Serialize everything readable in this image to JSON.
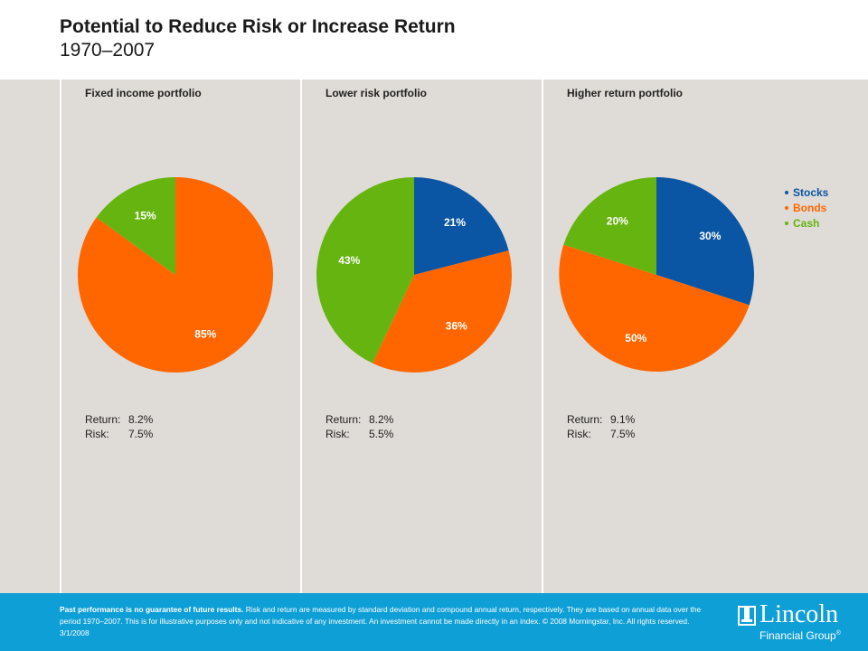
{
  "header": {
    "title": "Potential to Reduce Risk or Increase Return",
    "subtitle": "1970–2007"
  },
  "colors": {
    "stocks": "#0b56a4",
    "bonds": "#ff6600",
    "cash": "#66b410"
  },
  "legend": [
    {
      "label": "Stocks",
      "color": "#0b56a4"
    },
    {
      "label": "Bonds",
      "color": "#ff6600"
    },
    {
      "label": "Cash",
      "color": "#66b410"
    }
  ],
  "chart_data": [
    {
      "type": "pie",
      "title": "Fixed income portfolio",
      "slices": [
        {
          "name": "Stocks",
          "value": 0,
          "label": ""
        },
        {
          "name": "Bonds",
          "value": 85,
          "label": "85%"
        },
        {
          "name": "Cash",
          "value": 15,
          "label": "15%"
        }
      ],
      "return_label": "Return:",
      "return_value": "8.2%",
      "risk_label": "Risk:",
      "risk_value": "7.5%"
    },
    {
      "type": "pie",
      "title": "Lower risk portfolio",
      "slices": [
        {
          "name": "Stocks",
          "value": 21,
          "label": "21%"
        },
        {
          "name": "Bonds",
          "value": 36,
          "label": "36%"
        },
        {
          "name": "Cash",
          "value": 43,
          "label": "43%"
        }
      ],
      "return_label": "Return:",
      "return_value": "8.2%",
      "risk_label": "Risk:",
      "risk_value": "5.5%"
    },
    {
      "type": "pie",
      "title": "Higher return portfolio",
      "slices": [
        {
          "name": "Stocks",
          "value": 30,
          "label": "30%"
        },
        {
          "name": "Bonds",
          "value": 50,
          "label": "50%"
        },
        {
          "name": "Cash",
          "value": 20,
          "label": "20%"
        }
      ],
      "return_label": "Return:",
      "return_value": "9.1%",
      "risk_label": "Risk:",
      "risk_value": "7.5%"
    }
  ],
  "footer": {
    "disclaimer_bold": "Past performance is no guarantee of future results.",
    "disclaimer_text": " Risk and return are measured by standard deviation and compound annual return, respectively. They are based on annual data over the period 1970–2007. This is for illustrative purposes only and not indicative of any investment. An investment cannot be made directly in an index. © 2008 Morningstar, Inc. All rights reserved. 3/1/2008",
    "logo_name": "Lincoln",
    "logo_sub": "Financial Group",
    "logo_mark": "®"
  }
}
